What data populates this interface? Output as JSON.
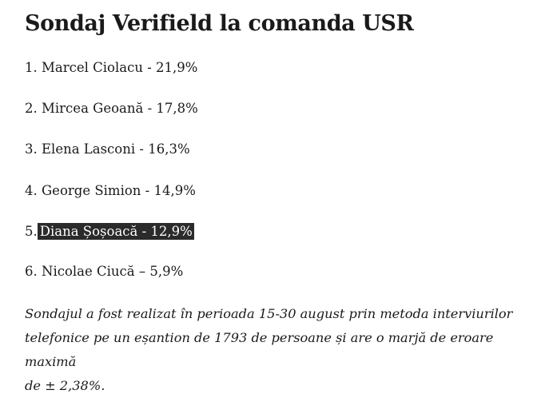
{
  "article": {
    "title": "Sondaj Verifield la comanda USR",
    "results": [
      {
        "number": "1.",
        "text": "Marcel Ciolacu - 21,9%"
      },
      {
        "number": "2.",
        "text": "Mircea Geoană - 17,8%"
      },
      {
        "number": "3.",
        "text": "Elena Lasconi - 16,3%"
      },
      {
        "number": "4.",
        "text": "George Simion - 14,9%"
      },
      {
        "number": "5.",
        "text": "Diana Șoșoacă - 12,9%",
        "highlighted": true
      },
      {
        "number": "6.",
        "text": "Nicolae Ciucă – 5,9%"
      }
    ],
    "note_lines": [
      "Sondajul a fost realizat în perioada 15-30 august prin metoda interviurilor",
      "telefonice pe un eșantion de 1793 de persoane și are o marjă de eroare maximă",
      "de ± 2,38%."
    ]
  },
  "colors": {
    "text": "#1a1a1a",
    "highlight_background": "#2b2b2b",
    "highlight_text": "#ffffff"
  }
}
